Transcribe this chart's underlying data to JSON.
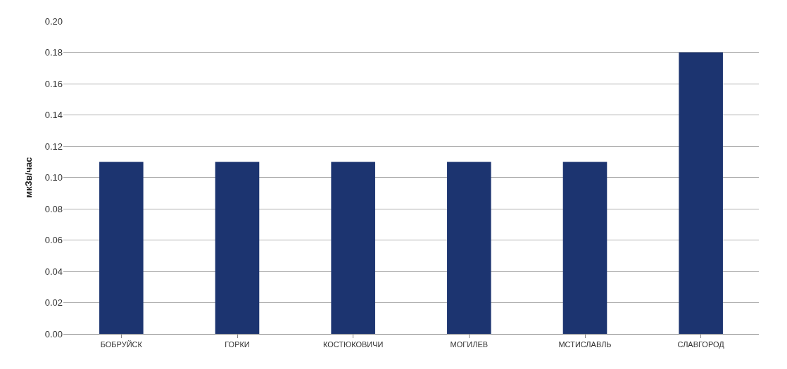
{
  "chart_data": {
    "type": "bar",
    "ylabel": "мкЗв/час",
    "categories": [
      "БОБРУЙСК",
      "ГОРКИ",
      "КОСТЮКОВИЧИ",
      "МОГИЛЕВ",
      "МСТИСЛАВЛЬ",
      "СЛАВГОРОД"
    ],
    "values": [
      0.11,
      0.11,
      0.11,
      0.11,
      0.11,
      0.18
    ],
    "color": "#1c3470",
    "ylim": [
      0,
      0.2
    ],
    "yticks": [
      {
        "value": 0,
        "label": "0.00"
      },
      {
        "value": 0.02,
        "label": "0.02"
      },
      {
        "value": 0.04,
        "label": "0.04"
      },
      {
        "value": 0.06,
        "label": "0.06"
      },
      {
        "value": 0.08,
        "label": "0.08"
      },
      {
        "value": 0.1,
        "label": "0.10"
      },
      {
        "value": 0.12,
        "label": "0.12"
      },
      {
        "value": 0.14,
        "label": "0.14"
      },
      {
        "value": 0.16,
        "label": "0.16"
      },
      {
        "value": 0.18,
        "label": "0.18"
      },
      {
        "value": 0.2,
        "label": "0.20"
      }
    ],
    "grid": "y"
  }
}
